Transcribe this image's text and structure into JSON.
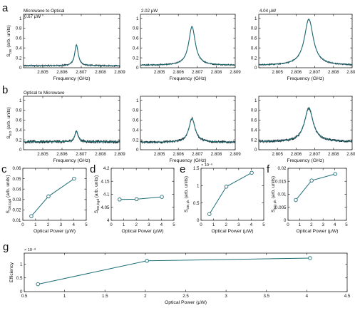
{
  "figure": {
    "width": 498,
    "height": 446
  },
  "style": {
    "trace_color": "#1f6f78",
    "marker_edge": "#1f6f78",
    "spine": "#222222"
  },
  "chart_data": [
    {
      "id": "a1",
      "type": "line",
      "panel_letter": "a",
      "row_label": "Microwave to Optical",
      "power_label": "0.67 µW",
      "xlabel": "Frequency (GHz)",
      "ylabel_main": "S",
      "ylabel_sub": "OE",
      "ylabel_tail": " (arb. units)",
      "xlim": [
        2.804,
        2.809
      ],
      "ylim": [
        0,
        1.08
      ],
      "xticks": [
        2.805,
        2.806,
        2.807,
        2.808,
        2.809
      ],
      "yticks": [
        0,
        0.2,
        0.4,
        0.6,
        0.8,
        1
      ],
      "peak": {
        "f0": 2.80675,
        "fwhm": 0.00022,
        "amp": 0.42,
        "base": 0.04,
        "noise": 0.015
      }
    },
    {
      "id": "a2",
      "type": "line",
      "panel_letter": "",
      "power_label": "2.02 µW",
      "xlabel": "Frequency (GHz)",
      "xlim": [
        2.804,
        2.809
      ],
      "ylim": [
        0,
        1.08
      ],
      "xticks": [
        2.805,
        2.806,
        2.807,
        2.808,
        2.809
      ],
      "yticks": [
        0,
        0.2,
        0.4,
        0.6,
        0.8,
        1
      ],
      "peak": {
        "f0": 2.80672,
        "fwhm": 0.00042,
        "amp": 0.78,
        "base": 0.05,
        "noise": 0.012
      }
    },
    {
      "id": "a3",
      "type": "line",
      "panel_letter": "",
      "power_label": "4.04 µW",
      "xlabel": "Frequency (GHz)",
      "xlim": [
        2.804,
        2.809
      ],
      "ylim": [
        0,
        1.08
      ],
      "xticks": [
        2.805,
        2.806,
        2.807,
        2.808,
        2.809
      ],
      "yticks": [
        0,
        0.2,
        0.4,
        0.6,
        0.8,
        1
      ],
      "peak": {
        "f0": 2.80668,
        "fwhm": 0.00058,
        "amp": 0.93,
        "base": 0.05,
        "noise": 0.012
      }
    },
    {
      "id": "b1",
      "type": "line",
      "panel_letter": "b",
      "row_label": "Optical to Microwave",
      "xlabel": "Frequency (GHz)",
      "ylabel_main": "S",
      "ylabel_sub": "EO",
      "ylabel_tail": " (arb. units)",
      "xlim": [
        2.804,
        2.809
      ],
      "ylim": [
        0,
        1.08
      ],
      "xticks": [
        2.805,
        2.806,
        2.807,
        2.808,
        2.809
      ],
      "yticks": [
        0,
        0.2,
        0.4,
        0.6,
        0.8,
        1
      ],
      "peak": {
        "f0": 2.80675,
        "fwhm": 0.0002,
        "amp": 0.22,
        "base": 0.16,
        "noise": 0.03
      }
    },
    {
      "id": "b2",
      "type": "line",
      "panel_letter": "",
      "xlabel": "Frequency (GHz)",
      "xlim": [
        2.804,
        2.809
      ],
      "ylim": [
        0,
        1.08
      ],
      "xticks": [
        2.805,
        2.806,
        2.807,
        2.808,
        2.809
      ],
      "yticks": [
        0,
        0.2,
        0.4,
        0.6,
        0.8,
        1
      ],
      "peak": {
        "f0": 2.80672,
        "fwhm": 0.0004,
        "amp": 0.48,
        "base": 0.15,
        "noise": 0.025
      }
    },
    {
      "id": "b3",
      "type": "line",
      "panel_letter": "",
      "xlabel": "Frequency (GHz)",
      "xlim": [
        2.804,
        2.809
      ],
      "ylim": [
        0,
        1.08
      ],
      "xticks": [
        2.805,
        2.806,
        2.807,
        2.808,
        2.809
      ],
      "yticks": [
        0,
        0.2,
        0.4,
        0.6,
        0.8,
        1
      ],
      "peak": {
        "f0": 2.80668,
        "fwhm": 0.00056,
        "amp": 0.68,
        "base": 0.16,
        "noise": 0.025
      }
    },
    {
      "id": "c",
      "type": "scatter",
      "panel_letter": "c",
      "xlabel": "Optical Power (µW)",
      "ylabel_main": "S",
      "ylabel_sub": "OE,bgd",
      "ylabel_tail": " (arb. units)",
      "xlim": [
        0,
        5
      ],
      "ylim": [
        0.01,
        0.06
      ],
      "xticks": [
        0,
        1,
        2,
        3,
        4,
        5
      ],
      "yticks": [
        0.01,
        0.02,
        0.03,
        0.04,
        0.05,
        0.06
      ],
      "x": [
        0.67,
        2.02,
        4.04
      ],
      "y": [
        0.014,
        0.033,
        0.05
      ]
    },
    {
      "id": "d",
      "type": "scatter",
      "panel_letter": "d",
      "xlabel": "Optical Power (µW)",
      "ylabel_main": "S",
      "ylabel_sub": "EE,bgd",
      "ylabel_tail": " (arb. units)",
      "xlim": [
        0,
        5
      ],
      "ylim": [
        4.0,
        4.2
      ],
      "xticks": [
        0,
        1,
        2,
        3,
        4,
        5
      ],
      "yticks": [
        4.0,
        4.05,
        4.1,
        4.15,
        4.2
      ],
      "x": [
        0.67,
        2.02,
        4.04
      ],
      "y": [
        4.08,
        4.081,
        4.09
      ]
    },
    {
      "id": "e",
      "type": "scatter",
      "panel_letter": "e",
      "xlabel": "Optical Power (µW)",
      "ylabel_main": "S",
      "ylabel_sub": "OE,pk",
      "ylabel_tail": " (arb. units)",
      "exponent": "× 10⁻⁶",
      "xlim": [
        0,
        5
      ],
      "ylim": [
        0,
        1.5
      ],
      "xticks": [
        0,
        1,
        2,
        3,
        4,
        5
      ],
      "yticks": [
        0,
        0.5,
        1,
        1.5
      ],
      "x": [
        0.67,
        2.02,
        4.04
      ],
      "y": [
        0.18,
        0.97,
        1.37
      ]
    },
    {
      "id": "f",
      "type": "scatter",
      "panel_letter": "f",
      "xlabel": "Optical Power (µW)",
      "ylabel_main": "S",
      "ylabel_sub": "EO,pk",
      "ylabel_tail": " (arb. units)",
      "xlim": [
        0,
        5
      ],
      "ylim": [
        0,
        0.02
      ],
      "xticks": [
        0,
        1,
        2,
        3,
        4,
        5
      ],
      "yticks": [
        0,
        0.005,
        0.01,
        0.015,
        0.02
      ],
      "x": [
        0.67,
        2.02,
        4.04
      ],
      "y": [
        0.0078,
        0.0153,
        0.0178
      ]
    },
    {
      "id": "g",
      "type": "scatter",
      "panel_letter": "g",
      "xlabel": "Optical Power (µW)",
      "ylabel_main": "Efficiency",
      "exponent": "× 10⁻⁸",
      "xlim": [
        0.5,
        4.5
      ],
      "ylim": [
        0,
        1.4
      ],
      "xticks": [
        0.5,
        1,
        1.5,
        2,
        2.5,
        3,
        3.5,
        4,
        4.5
      ],
      "yticks": [
        0,
        0.5,
        1
      ],
      "x": [
        0.67,
        2.02,
        4.04
      ],
      "y": [
        0.27,
        1.12,
        1.22
      ]
    }
  ]
}
